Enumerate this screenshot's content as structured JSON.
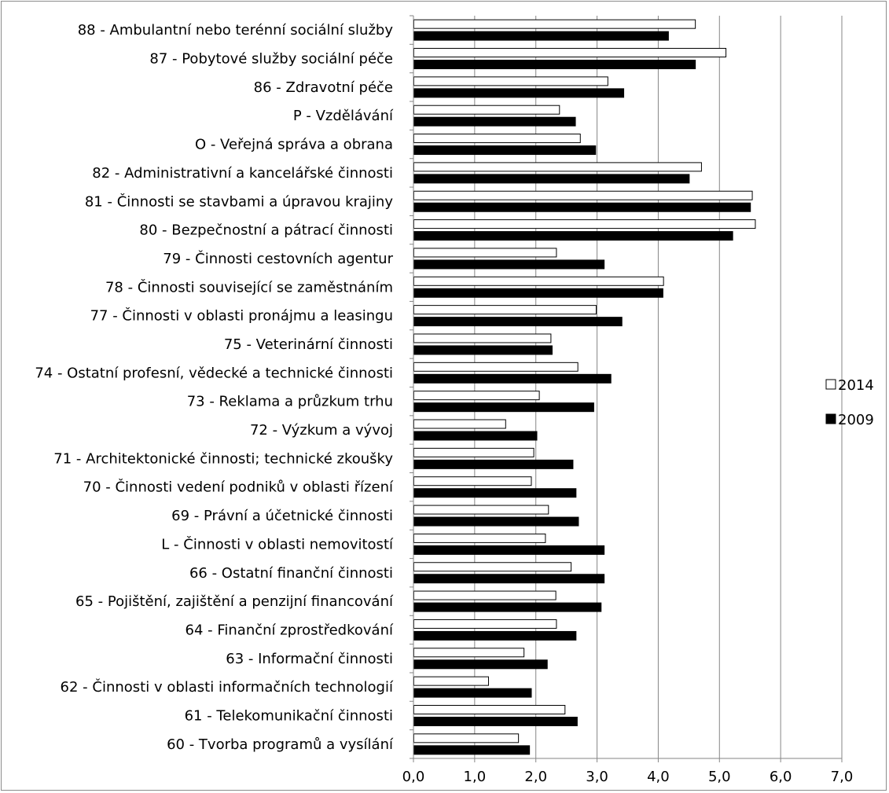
{
  "chart_data": {
    "type": "bar",
    "orientation": "horizontal",
    "categories": [
      "88 - Ambulantní nebo terénní sociální služby",
      "87 - Pobytové služby sociální péče",
      "86 - Zdravotní péče",
      "P - Vzdělávání",
      "O - Veřejná správa a obrana",
      "82 - Administrativní a kancelářské činnosti",
      "81 - Činnosti se stavbami a úpravou krajiny",
      "80 - Bezpečnostní a pátrací činnosti",
      "79 - Činnosti cestovních agentur",
      "78 - Činnosti související se zaměstnáním",
      "77 - Činnosti v oblasti pronájmu a leasingu",
      "75 - Veterinární činnosti",
      "74 - Ostatní profesní, vědecké a technické činnosti",
      "73 - Reklama a průzkum trhu",
      "72 - Výzkum a vývoj",
      "71 - Architektonické činnosti; technické zkoušky",
      "70 - Činnosti vedení podniků v oblasti řízení",
      "69 - Právní a účetnické činnosti",
      "L - Činnosti v oblasti nemovitostí",
      "66 - Ostatní finanční činnosti",
      "65 - Pojištění, zajištění a penzijní financování",
      "64 - Finanční zprostředkování",
      "63 - Informační činnosti",
      "62 - Činnosti v oblasti informačních technologií",
      "61 - Telekomunikační činnosti",
      "60 - Tvorba programů a vysílání"
    ],
    "series": [
      {
        "name": "2014",
        "color": "#ffffff",
        "values": [
          4.6,
          5.1,
          3.17,
          2.38,
          2.72,
          4.7,
          5.53,
          5.58,
          2.33,
          4.08,
          2.98,
          2.24,
          2.68,
          2.05,
          1.5,
          1.96,
          1.92,
          2.2,
          2.15,
          2.57,
          2.32,
          2.33,
          1.8,
          1.22,
          2.47,
          1.71
        ]
      },
      {
        "name": "2009",
        "color": "#000000",
        "values": [
          4.16,
          4.6,
          3.43,
          2.64,
          2.97,
          4.5,
          5.5,
          5.21,
          3.11,
          4.07,
          3.4,
          2.26,
          3.22,
          2.94,
          2.01,
          2.6,
          2.65,
          2.69,
          3.11,
          3.11,
          3.06,
          2.65,
          2.18,
          1.92,
          2.67,
          1.89
        ]
      }
    ],
    "xlim": [
      0,
      7
    ],
    "xticks": [
      "0,0",
      "1,0",
      "2,0",
      "3,0",
      "4,0",
      "5,0",
      "6,0",
      "7,0"
    ],
    "grid": "vertical",
    "legend_position": "right",
    "title": "",
    "xlabel": "",
    "ylabel": ""
  },
  "colors": {
    "grid": "#868686",
    "axis": "#868686",
    "frame": "#8c8c8c",
    "bar_outline": "#000000"
  }
}
